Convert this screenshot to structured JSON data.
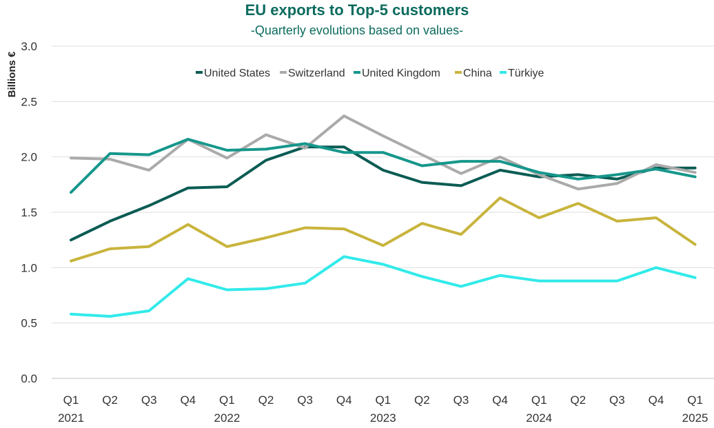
{
  "chart_data": {
    "type": "line",
    "title": "EU exports to Top-5 customers",
    "subtitle": "-Quarterly evolutions based on values-",
    "ylabel": "Billions €",
    "xlabel": "",
    "ylim": [
      0,
      3
    ],
    "yticks": [
      "0.0",
      "0.5",
      "1.0",
      "1.5",
      "2.0",
      "2.5",
      "3.0"
    ],
    "grid": true,
    "legend_position": "top",
    "quarters": [
      "Q1",
      "Q2",
      "Q3",
      "Q4",
      "Q1",
      "Q2",
      "Q3",
      "Q4",
      "Q1",
      "Q2",
      "Q3",
      "Q4",
      "Q1",
      "Q2",
      "Q3",
      "Q4",
      "Q1"
    ],
    "years": [
      {
        "label": "2021",
        "index": 0
      },
      {
        "label": "2022",
        "index": 4
      },
      {
        "label": "2023",
        "index": 8
      },
      {
        "label": "2024",
        "index": 12
      },
      {
        "label": "2025",
        "index": 16
      }
    ],
    "series": [
      {
        "name": "United States",
        "color": "#0b5c54",
        "values": [
          1.25,
          1.42,
          1.56,
          1.72,
          1.73,
          1.97,
          2.09,
          2.09,
          1.88,
          1.77,
          1.74,
          1.88,
          1.82,
          1.84,
          1.8,
          1.9,
          1.9
        ]
      },
      {
        "name": "Switzerland",
        "color": "#aaaaaa",
        "values": [
          1.99,
          1.98,
          1.88,
          2.16,
          1.99,
          2.2,
          2.08,
          2.37,
          2.19,
          2.02,
          1.85,
          2.0,
          1.84,
          1.71,
          1.76,
          1.93,
          1.86
        ]
      },
      {
        "name": "United Kingdom",
        "color": "#16978b",
        "values": [
          1.68,
          2.03,
          2.02,
          2.16,
          2.06,
          2.07,
          2.12,
          2.04,
          2.04,
          1.92,
          1.96,
          1.96,
          1.86,
          1.8,
          1.84,
          1.89,
          1.82
        ]
      },
      {
        "name": "China",
        "color": "#c8b43c",
        "values": [
          1.06,
          1.17,
          1.19,
          1.39,
          1.19,
          1.27,
          1.36,
          1.35,
          1.2,
          1.4,
          1.3,
          1.63,
          1.45,
          1.58,
          1.42,
          1.45,
          1.21
        ]
      },
      {
        "name": "Türkiye",
        "color": "#33eaea",
        "values": [
          0.58,
          0.56,
          0.61,
          0.9,
          0.8,
          0.81,
          0.86,
          1.1,
          1.03,
          0.92,
          0.83,
          0.93,
          0.88,
          0.88,
          0.88,
          1.0,
          0.91
        ]
      }
    ]
  }
}
